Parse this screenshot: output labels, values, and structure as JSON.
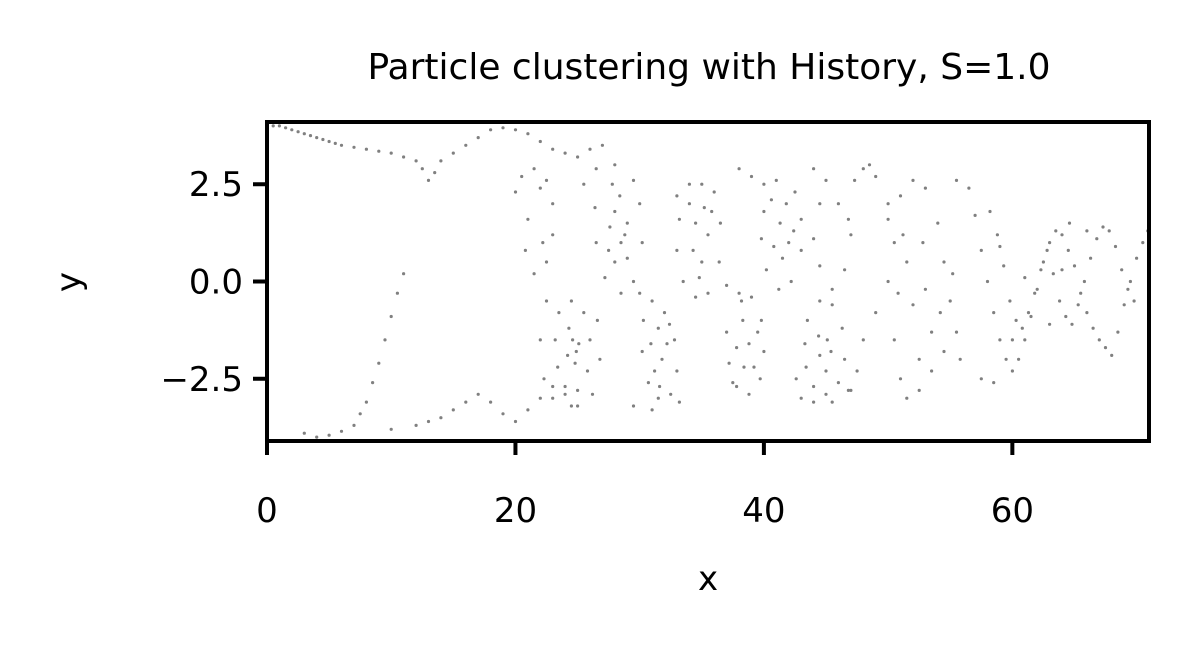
{
  "chart_data": {
    "type": "scatter",
    "title": "Particle clustering with History, S=1.0",
    "xlabel": "x",
    "ylabel": "y",
    "xlim": [
      0,
      71
    ],
    "ylim": [
      -4.1,
      4.1
    ],
    "xticks": [
      0,
      20,
      40,
      60
    ],
    "xtick_labels": [
      "0",
      "20",
      "40",
      "60"
    ],
    "yticks": [
      2.5,
      0.0,
      -2.5
    ],
    "ytick_labels": [
      "2.5",
      "0.0",
      "−2.5"
    ],
    "grid": false,
    "legend": "none",
    "marker_color": "#808080",
    "series": [
      {
        "points": [
          [
            0.5,
            4.0
          ],
          [
            1,
            4.0
          ],
          [
            1.5,
            3.95
          ],
          [
            2,
            3.9
          ],
          [
            2.5,
            3.85
          ],
          [
            3,
            3.8
          ],
          [
            3.5,
            3.75
          ],
          [
            4,
            3.7
          ],
          [
            4.5,
            3.65
          ],
          [
            5,
            3.6
          ],
          [
            5.5,
            3.55
          ],
          [
            6,
            3.5
          ],
          [
            7,
            3.45
          ],
          [
            8,
            3.4
          ],
          [
            9,
            3.35
          ],
          [
            10,
            3.3
          ],
          [
            11,
            3.2
          ],
          [
            12,
            3.1
          ],
          [
            12.5,
            2.9
          ],
          [
            13,
            2.6
          ],
          [
            13.5,
            2.8
          ],
          [
            14,
            3.1
          ],
          [
            15,
            3.3
          ],
          [
            16,
            3.5
          ],
          [
            17,
            3.7
          ],
          [
            18,
            3.9
          ],
          [
            19,
            3.95
          ],
          [
            20,
            3.9
          ],
          [
            21,
            3.8
          ],
          [
            22,
            3.6
          ],
          [
            23,
            3.4
          ],
          [
            24,
            3.3
          ],
          [
            25,
            3.2
          ],
          [
            26,
            3.4
          ],
          [
            27,
            3.5
          ],
          [
            3,
            -3.9
          ],
          [
            4,
            -4.0
          ],
          [
            5,
            -3.95
          ],
          [
            6,
            -3.85
          ],
          [
            7,
            -3.7
          ],
          [
            7.5,
            -3.4
          ],
          [
            8,
            -3.1
          ],
          [
            8.5,
            -2.6
          ],
          [
            9,
            -2.1
          ],
          [
            9.5,
            -1.5
          ],
          [
            10,
            -0.9
          ],
          [
            10.5,
            -0.3
          ],
          [
            11,
            0.2
          ],
          [
            10,
            -3.8
          ],
          [
            12,
            -3.7
          ],
          [
            13,
            -3.6
          ],
          [
            14,
            -3.5
          ],
          [
            15,
            -3.3
          ],
          [
            16,
            -3.1
          ],
          [
            17,
            -2.9
          ],
          [
            18,
            -3.1
          ],
          [
            19,
            -3.4
          ],
          [
            20,
            -3.6
          ],
          [
            21,
            -3.3
          ],
          [
            22,
            -3.0
          ],
          [
            23,
            -2.7
          ],
          [
            24,
            -2.9
          ],
          [
            25,
            -3.2
          ],
          [
            20,
            2.3
          ],
          [
            20.5,
            2.7
          ],
          [
            21.5,
            2.9
          ],
          [
            22.5,
            2.6
          ],
          [
            23,
            2.0
          ],
          [
            23,
            1.2
          ],
          [
            22.5,
            0.5
          ],
          [
            21.5,
            0.2
          ],
          [
            20.8,
            0.8
          ],
          [
            21,
            1.6
          ],
          [
            22,
            2.4
          ],
          [
            22.2,
            1.0
          ],
          [
            25.5,
            2.5
          ],
          [
            26.5,
            2.9
          ],
          [
            28,
            3.0
          ],
          [
            29.5,
            2.6
          ],
          [
            30,
            2.0
          ],
          [
            30.2,
            1.0
          ],
          [
            29.5,
            0.0
          ],
          [
            28.5,
            -0.3
          ],
          [
            27.2,
            0.1
          ],
          [
            26.5,
            1.0
          ],
          [
            26.4,
            1.9
          ],
          [
            28,
            1.8
          ],
          [
            28.5,
            1.0
          ],
          [
            28,
            0.5
          ],
          [
            27.6,
            1.4
          ],
          [
            29,
            1.5
          ],
          [
            28.4,
            2.2
          ],
          [
            27.8,
            2.5
          ],
          [
            29,
            0.6
          ],
          [
            28.8,
            1.2
          ],
          [
            27.5,
            0.8
          ],
          [
            33,
            2.2
          ],
          [
            34,
            2.5
          ],
          [
            35,
            2.5
          ],
          [
            36,
            2.3
          ],
          [
            36.5,
            1.5
          ],
          [
            36.4,
            0.5
          ],
          [
            35.5,
            -0.3
          ],
          [
            34.5,
            -0.4
          ],
          [
            33.5,
            0.0
          ],
          [
            33,
            0.8
          ],
          [
            33.2,
            1.6
          ],
          [
            34.5,
            1.5
          ],
          [
            35.5,
            1.2
          ],
          [
            35,
            0.5
          ],
          [
            34.3,
            0.8
          ],
          [
            35.2,
            1.9
          ],
          [
            34,
            2.0
          ],
          [
            35.8,
            1.8
          ],
          [
            34.8,
            0.1
          ],
          [
            40,
            2.5
          ],
          [
            41,
            2.6
          ],
          [
            42.5,
            2.3
          ],
          [
            43,
            1.6
          ],
          [
            43,
            0.8
          ],
          [
            42.2,
            0.0
          ],
          [
            41.2,
            -0.2
          ],
          [
            40.2,
            0.3
          ],
          [
            39.8,
            1.1
          ],
          [
            40,
            1.8
          ],
          [
            41.3,
            1.5
          ],
          [
            42,
            1.0
          ],
          [
            41.5,
            0.6
          ],
          [
            40.8,
            0.9
          ],
          [
            41.8,
            2.0
          ],
          [
            40.6,
            2.1
          ],
          [
            42.4,
            1.3
          ],
          [
            38,
            2.9
          ],
          [
            39,
            2.7
          ],
          [
            44,
            2.9
          ],
          [
            45,
            2.6
          ],
          [
            46,
            2.0
          ],
          [
            47,
            1.2
          ],
          [
            46.5,
            0.3
          ],
          [
            45.5,
            -0.2
          ],
          [
            44.5,
            0.4
          ],
          [
            44,
            1.1
          ],
          [
            44.5,
            2.0
          ],
          [
            48,
            2.9
          ],
          [
            49,
            2.7
          ],
          [
            50,
            2.0
          ],
          [
            50.5,
            1.0
          ],
          [
            50,
            0.0
          ],
          [
            49,
            -0.8
          ],
          [
            48,
            -1.5
          ],
          [
            47.5,
            -2.3
          ],
          [
            47,
            -2.8
          ],
          [
            48.5,
            3.0
          ],
          [
            47.3,
            2.6
          ],
          [
            46.8,
            1.6
          ],
          [
            23.5,
            -0.8
          ],
          [
            24.5,
            -0.5
          ],
          [
            25.5,
            -0.8
          ],
          [
            26,
            -1.5
          ],
          [
            25.8,
            -2.3
          ],
          [
            25,
            -2.8
          ],
          [
            24,
            -2.7
          ],
          [
            23.4,
            -2.2
          ],
          [
            23.2,
            -1.5
          ],
          [
            24.3,
            -1.2
          ],
          [
            25.1,
            -1.6
          ],
          [
            24.8,
            -2.1
          ],
          [
            24.2,
            -1.9
          ],
          [
            24.6,
            -1.5
          ],
          [
            24.9,
            -1.8
          ],
          [
            22.5,
            -0.5
          ],
          [
            22,
            -1.5
          ],
          [
            22.3,
            -2.5
          ],
          [
            23,
            -3.0
          ],
          [
            24.5,
            -3.2
          ],
          [
            26.2,
            -2.9
          ],
          [
            26.8,
            -2.0
          ],
          [
            26.6,
            -1.0
          ],
          [
            30,
            -0.3
          ],
          [
            31,
            -0.5
          ],
          [
            32,
            -0.8
          ],
          [
            32.8,
            -1.5
          ],
          [
            33,
            -2.3
          ],
          [
            32.5,
            -2.9
          ],
          [
            31.5,
            -3.0
          ],
          [
            30.7,
            -2.6
          ],
          [
            30.2,
            -1.8
          ],
          [
            30.3,
            -1.0
          ],
          [
            31.5,
            -1.2
          ],
          [
            31.8,
            -2.0
          ],
          [
            31.2,
            -2.3
          ],
          [
            30.9,
            -1.6
          ],
          [
            32.2,
            -1.6
          ],
          [
            31.6,
            -2.7
          ],
          [
            32.4,
            -1.1
          ],
          [
            29.5,
            -3.2
          ],
          [
            31,
            -3.3
          ],
          [
            33.2,
            -3.1
          ],
          [
            37,
            -0.1
          ],
          [
            38,
            -0.3
          ],
          [
            39,
            -0.4
          ],
          [
            39.8,
            -1.0
          ],
          [
            40,
            -1.8
          ],
          [
            39.7,
            -2.5
          ],
          [
            38.8,
            -2.9
          ],
          [
            37.8,
            -2.7
          ],
          [
            37.2,
            -2.1
          ],
          [
            37,
            -1.3
          ],
          [
            38.3,
            -1.0
          ],
          [
            38.8,
            -1.6
          ],
          [
            38.4,
            -2.2
          ],
          [
            37.8,
            -1.7
          ],
          [
            39.2,
            -2.2
          ],
          [
            38.2,
            -0.5
          ],
          [
            37.5,
            -2.6
          ],
          [
            39.5,
            -1.3
          ],
          [
            43.5,
            -1.0
          ],
          [
            44.5,
            -0.5
          ],
          [
            45.5,
            -0.6
          ],
          [
            46.3,
            -1.2
          ],
          [
            46.5,
            -2.0
          ],
          [
            46,
            -2.6
          ],
          [
            45,
            -2.9
          ],
          [
            44,
            -2.7
          ],
          [
            43.4,
            -2.2
          ],
          [
            43.3,
            -1.6
          ],
          [
            44.4,
            -1.4
          ],
          [
            45.4,
            -1.8
          ],
          [
            45,
            -2.3
          ],
          [
            44.5,
            -1.9
          ],
          [
            45.1,
            -1.5
          ],
          [
            42.6,
            -2.5
          ],
          [
            43,
            -3.0
          ],
          [
            44,
            -3.1
          ],
          [
            45.5,
            -3.1
          ],
          [
            46.8,
            -2.8
          ],
          [
            50,
            1.6
          ],
          [
            51,
            2.2
          ],
          [
            52,
            2.6
          ],
          [
            53,
            2.4
          ],
          [
            54,
            1.5
          ],
          [
            54.5,
            0.5
          ],
          [
            55,
            -0.5
          ],
          [
            55.5,
            -1.3
          ],
          [
            54.5,
            -1.8
          ],
          [
            53.5,
            -2.3
          ],
          [
            52.5,
            -2.8
          ],
          [
            51.5,
            -3.0
          ],
          [
            51,
            -2.5
          ],
          [
            50.5,
            -1.5
          ],
          [
            52,
            -0.6
          ],
          [
            53,
            -0.2
          ],
          [
            51.5,
            0.5
          ],
          [
            52.8,
            1.0
          ],
          [
            53.5,
            -1.3
          ],
          [
            54.2,
            -0.8
          ],
          [
            55.2,
            0.2
          ],
          [
            55.8,
            -2.0
          ],
          [
            52.5,
            -2.0
          ],
          [
            50.8,
            -0.3
          ],
          [
            51.2,
            1.2
          ],
          [
            55.5,
            2.6
          ],
          [
            56.5,
            2.4
          ],
          [
            57,
            1.7
          ],
          [
            57.5,
            0.8
          ],
          [
            58,
            0.0
          ],
          [
            58.5,
            -0.8
          ],
          [
            59,
            -1.5
          ],
          [
            59.5,
            -2.0
          ],
          [
            60,
            -2.3
          ],
          [
            60.5,
            -2.0
          ],
          [
            61,
            -1.5
          ],
          [
            61.5,
            -0.9
          ],
          [
            62,
            -0.2
          ],
          [
            62.5,
            0.5
          ],
          [
            63,
            1.0
          ],
          [
            63.5,
            1.3
          ],
          [
            64,
            1.2
          ],
          [
            64.5,
            0.8
          ],
          [
            65,
            0.4
          ],
          [
            65.5,
            -0.3
          ],
          [
            66,
            -0.8
          ],
          [
            66.5,
            -1.2
          ],
          [
            67,
            -1.5
          ],
          [
            67.5,
            -1.7
          ],
          [
            68,
            -1.9
          ],
          [
            68.5,
            -1.3
          ],
          [
            69,
            -0.6
          ],
          [
            69.5,
            0.0
          ],
          [
            70,
            0.6
          ],
          [
            70.5,
            1.0
          ],
          [
            70.9,
            1.3
          ],
          [
            58.2,
            1.8
          ],
          [
            58.8,
            1.2
          ],
          [
            59.3,
            0.4
          ],
          [
            59.8,
            -0.5
          ],
          [
            60.3,
            -1.0
          ],
          [
            60.8,
            -1.2
          ],
          [
            61.3,
            -0.8
          ],
          [
            61.8,
            -0.3
          ],
          [
            62.3,
            0.3
          ],
          [
            62.8,
            0.8
          ],
          [
            63.3,
            0.2
          ],
          [
            63.8,
            -0.5
          ],
          [
            64.3,
            -0.9
          ],
          [
            64.8,
            -1.1
          ],
          [
            65.3,
            -0.6
          ],
          [
            65.8,
            0.0
          ],
          [
            66.3,
            0.6
          ],
          [
            66.8,
            1.1
          ],
          [
            67.3,
            1.4
          ],
          [
            67.8,
            1.3
          ],
          [
            68.3,
            0.9
          ],
          [
            68.8,
            0.3
          ],
          [
            69.3,
            -0.2
          ],
          [
            69.8,
            -0.5
          ],
          [
            57.5,
            -2.5
          ],
          [
            58.5,
            -2.6
          ],
          [
            60,
            -1.5
          ],
          [
            63,
            -1.1
          ],
          [
            64,
            0.3
          ],
          [
            64.6,
            1.5
          ],
          [
            61,
            0.1
          ],
          [
            59,
            0.9
          ],
          [
            66,
            1.3
          ]
        ]
      }
    ]
  }
}
